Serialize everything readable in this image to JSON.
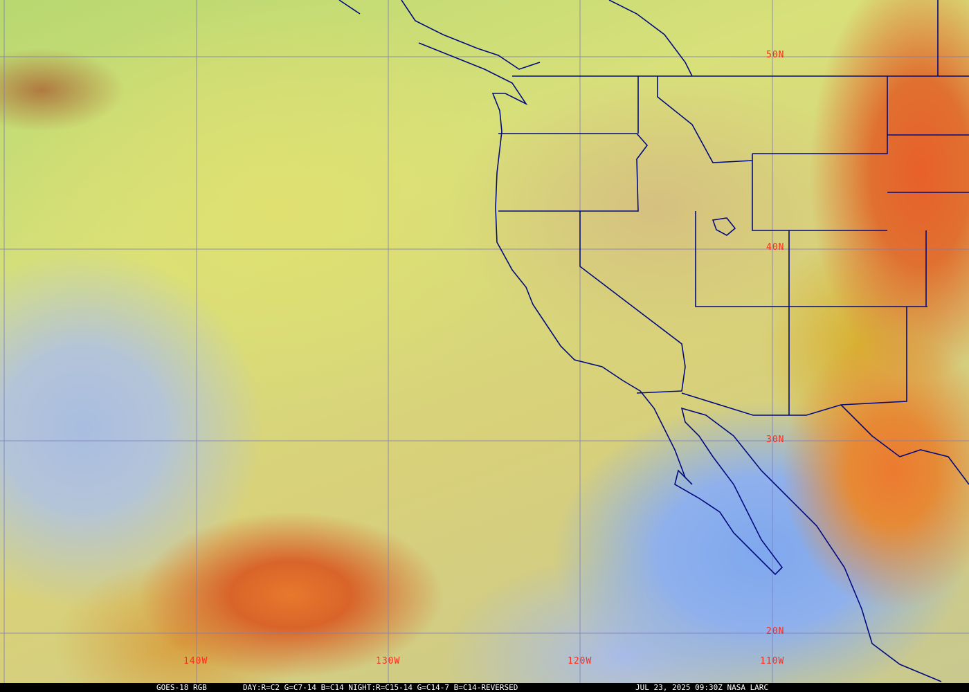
{
  "caption": {
    "satellite": "GOES-18 RGB",
    "channels": "DAY:R=C2 G=C7-14 B=C14 NIGHT:R=C15-14 G=C14-7 B=C14-REVERSED",
    "timestamp": "JUL 23, 2025 09:30Z NASA LARC"
  },
  "latitude_labels": [
    "50N",
    "40N",
    "30N",
    "20N"
  ],
  "longitude_labels": [
    "140W",
    "130W",
    "120W",
    "110W"
  ],
  "colors": {
    "grid": "#7c7cc0",
    "borders": "#000a80",
    "labels": "#ff2a1a"
  }
}
